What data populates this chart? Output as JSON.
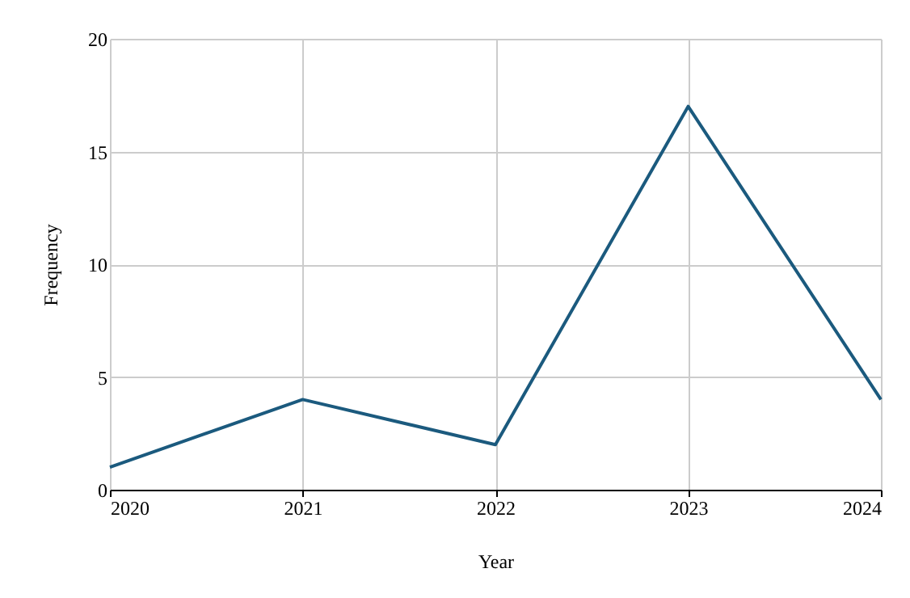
{
  "chart_data": {
    "type": "line",
    "xlabel": "Year",
    "ylabel": "Frequency",
    "x": [
      2020,
      2021,
      2022,
      2023,
      2024
    ],
    "series": [
      {
        "color": "#1b5a7e",
        "values": [
          1,
          4,
          2,
          17,
          4
        ]
      }
    ],
    "xlim": [
      2020,
      2024
    ],
    "xticks": [
      2020,
      2021,
      2022,
      2023,
      2024
    ],
    "ylim": [
      0,
      20
    ],
    "yticks": [
      0,
      5,
      10,
      15,
      20
    ],
    "grid": true,
    "marker": "none",
    "line_style": "solid"
  }
}
